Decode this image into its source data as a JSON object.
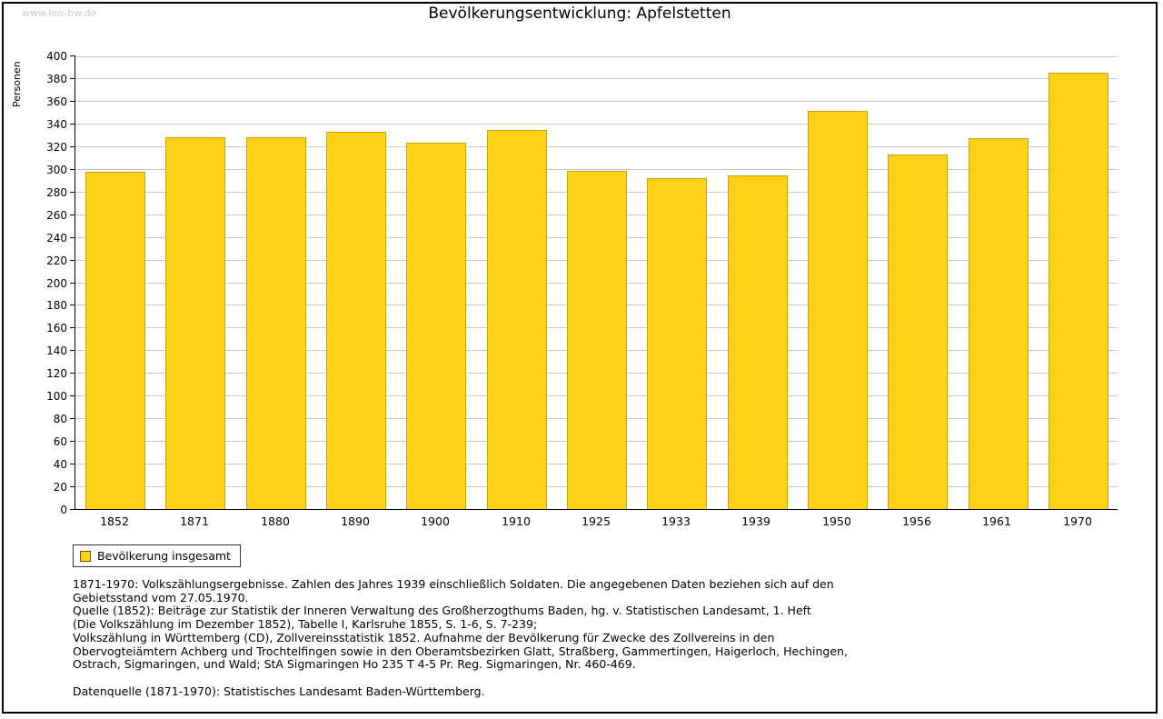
{
  "watermark": "www.leo-bw.de",
  "title": "Bevölkerungsentwicklung: Apfelstetten",
  "colors": {
    "bar_fill": "#fcd116",
    "bar_border": "#c9a408",
    "gridline": "#c9c9c9",
    "watermark": "#cccccc"
  },
  "legend": {
    "label": "Bevölkerung insgesamt"
  },
  "chart_data": {
    "type": "bar",
    "title": "Bevölkerungsentwicklung: Apfelstetten",
    "xlabel": "",
    "ylabel": "Personen",
    "ylim": [
      0,
      400
    ],
    "ytick_step": 20,
    "grid": true,
    "legend_position": "bottom-left",
    "categories": [
      "1852",
      "1871",
      "1880",
      "1890",
      "1900",
      "1910",
      "1925",
      "1933",
      "1939",
      "1950",
      "1956",
      "1961",
      "1970"
    ],
    "series": [
      {
        "name": "Bevölkerung insgesamt",
        "values": [
          297,
          328,
          328,
          333,
          323,
          334,
          298,
          292,
          294,
          351,
          313,
          327,
          385
        ]
      }
    ]
  },
  "footer": {
    "lines": [
      "1871-1970: Volkszählungsergebnisse. Zahlen des Jahres 1939 einschließlich Soldaten. Die angegebenen Daten beziehen sich auf den",
      "Gebietsstand vom 27.05.1970.",
      "Quelle (1852): Beiträge zur Statistik der Inneren Verwaltung des Großherzogthums Baden, hg. v. Statistischen Landesamt, 1. Heft",
      "(Die Volkszählung im Dezember 1852), Tabelle I, Karlsruhe 1855, S. 1-6, S. 7-239;",
      "Volkszählung in Württemberg (CD), Zollvereinsstatistik 1852. Aufnahme der Bevölkerung für Zwecke des Zollvereins in den",
      "Obervogteiämtern Achberg und Trochtelfingen sowie in den Oberamtsbezirken Glatt, Straßberg, Gammertingen, Haigerloch, Hechingen,",
      "Ostrach, Sigmaringen, und Wald; StA Sigmaringen Ho 235 T 4-5 Pr. Reg. Sigmaringen, Nr. 460-469.",
      "",
      "Datenquelle (1871-1970): Statistisches Landesamt Baden-Württemberg."
    ]
  }
}
